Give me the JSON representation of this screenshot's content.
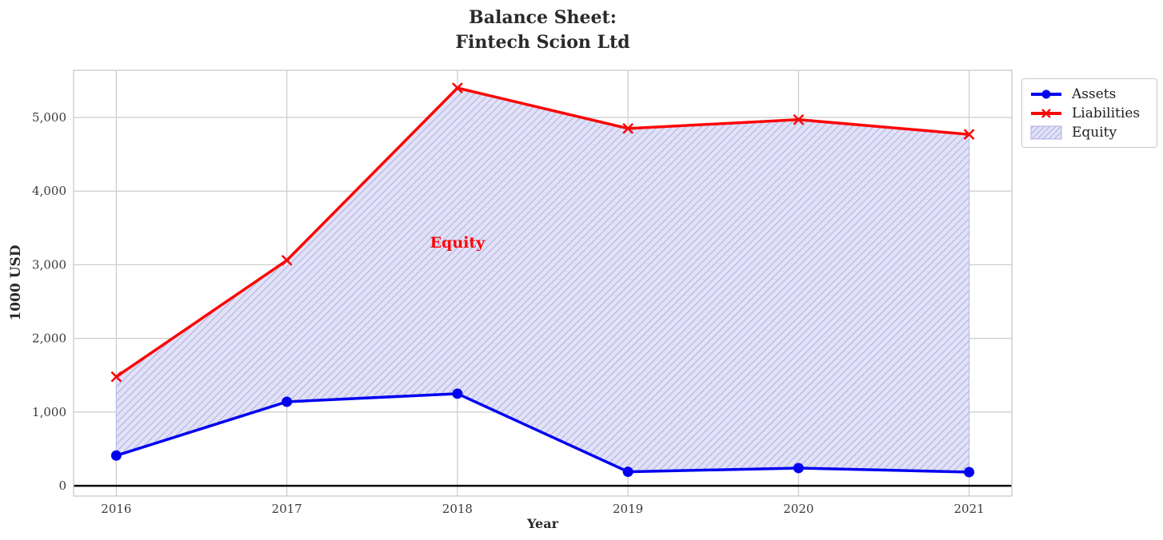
{
  "chart_data": {
    "type": "line",
    "title": "Balance Sheet:\nFintech Scion Ltd",
    "xlabel": "Year",
    "ylabel": "1000 USD",
    "categories": [
      "2016",
      "2017",
      "2018",
      "2019",
      "2020",
      "2021"
    ],
    "series": [
      {
        "name": "Assets",
        "color": "#0202f0",
        "marker": "circle",
        "values": [
          410,
          1140,
          1250,
          190,
          240,
          185
        ]
      },
      {
        "name": "Liabilities",
        "color": "#fb0606",
        "marker": "x",
        "values": [
          1480,
          3060,
          5400,
          4850,
          4970,
          4770
        ]
      }
    ],
    "fill_between": {
      "label": "Equity",
      "upper": "Liabilities",
      "lower": "Assets",
      "facecolor": "#e2e2f7",
      "hatchcolor": "#b7b7e8"
    },
    "yticks": [
      0,
      1000,
      2000,
      3000,
      4000,
      5000
    ],
    "ytick_labels": [
      "0",
      "1,000",
      "2,000",
      "3,000",
      "4,000",
      "5,000"
    ],
    "ylim": [
      -140,
      5640
    ],
    "grid": true,
    "zero_line": true,
    "legend_position": "outside-top-right",
    "annotation": {
      "text": "Equity",
      "x_index": 2,
      "y_value": 3300,
      "color": "#fb0606"
    },
    "colors": {
      "grid": "#cccccc",
      "frame": "#c8c8c8",
      "zero_line": "#000000",
      "tick_label": "#3a3a3a"
    }
  }
}
